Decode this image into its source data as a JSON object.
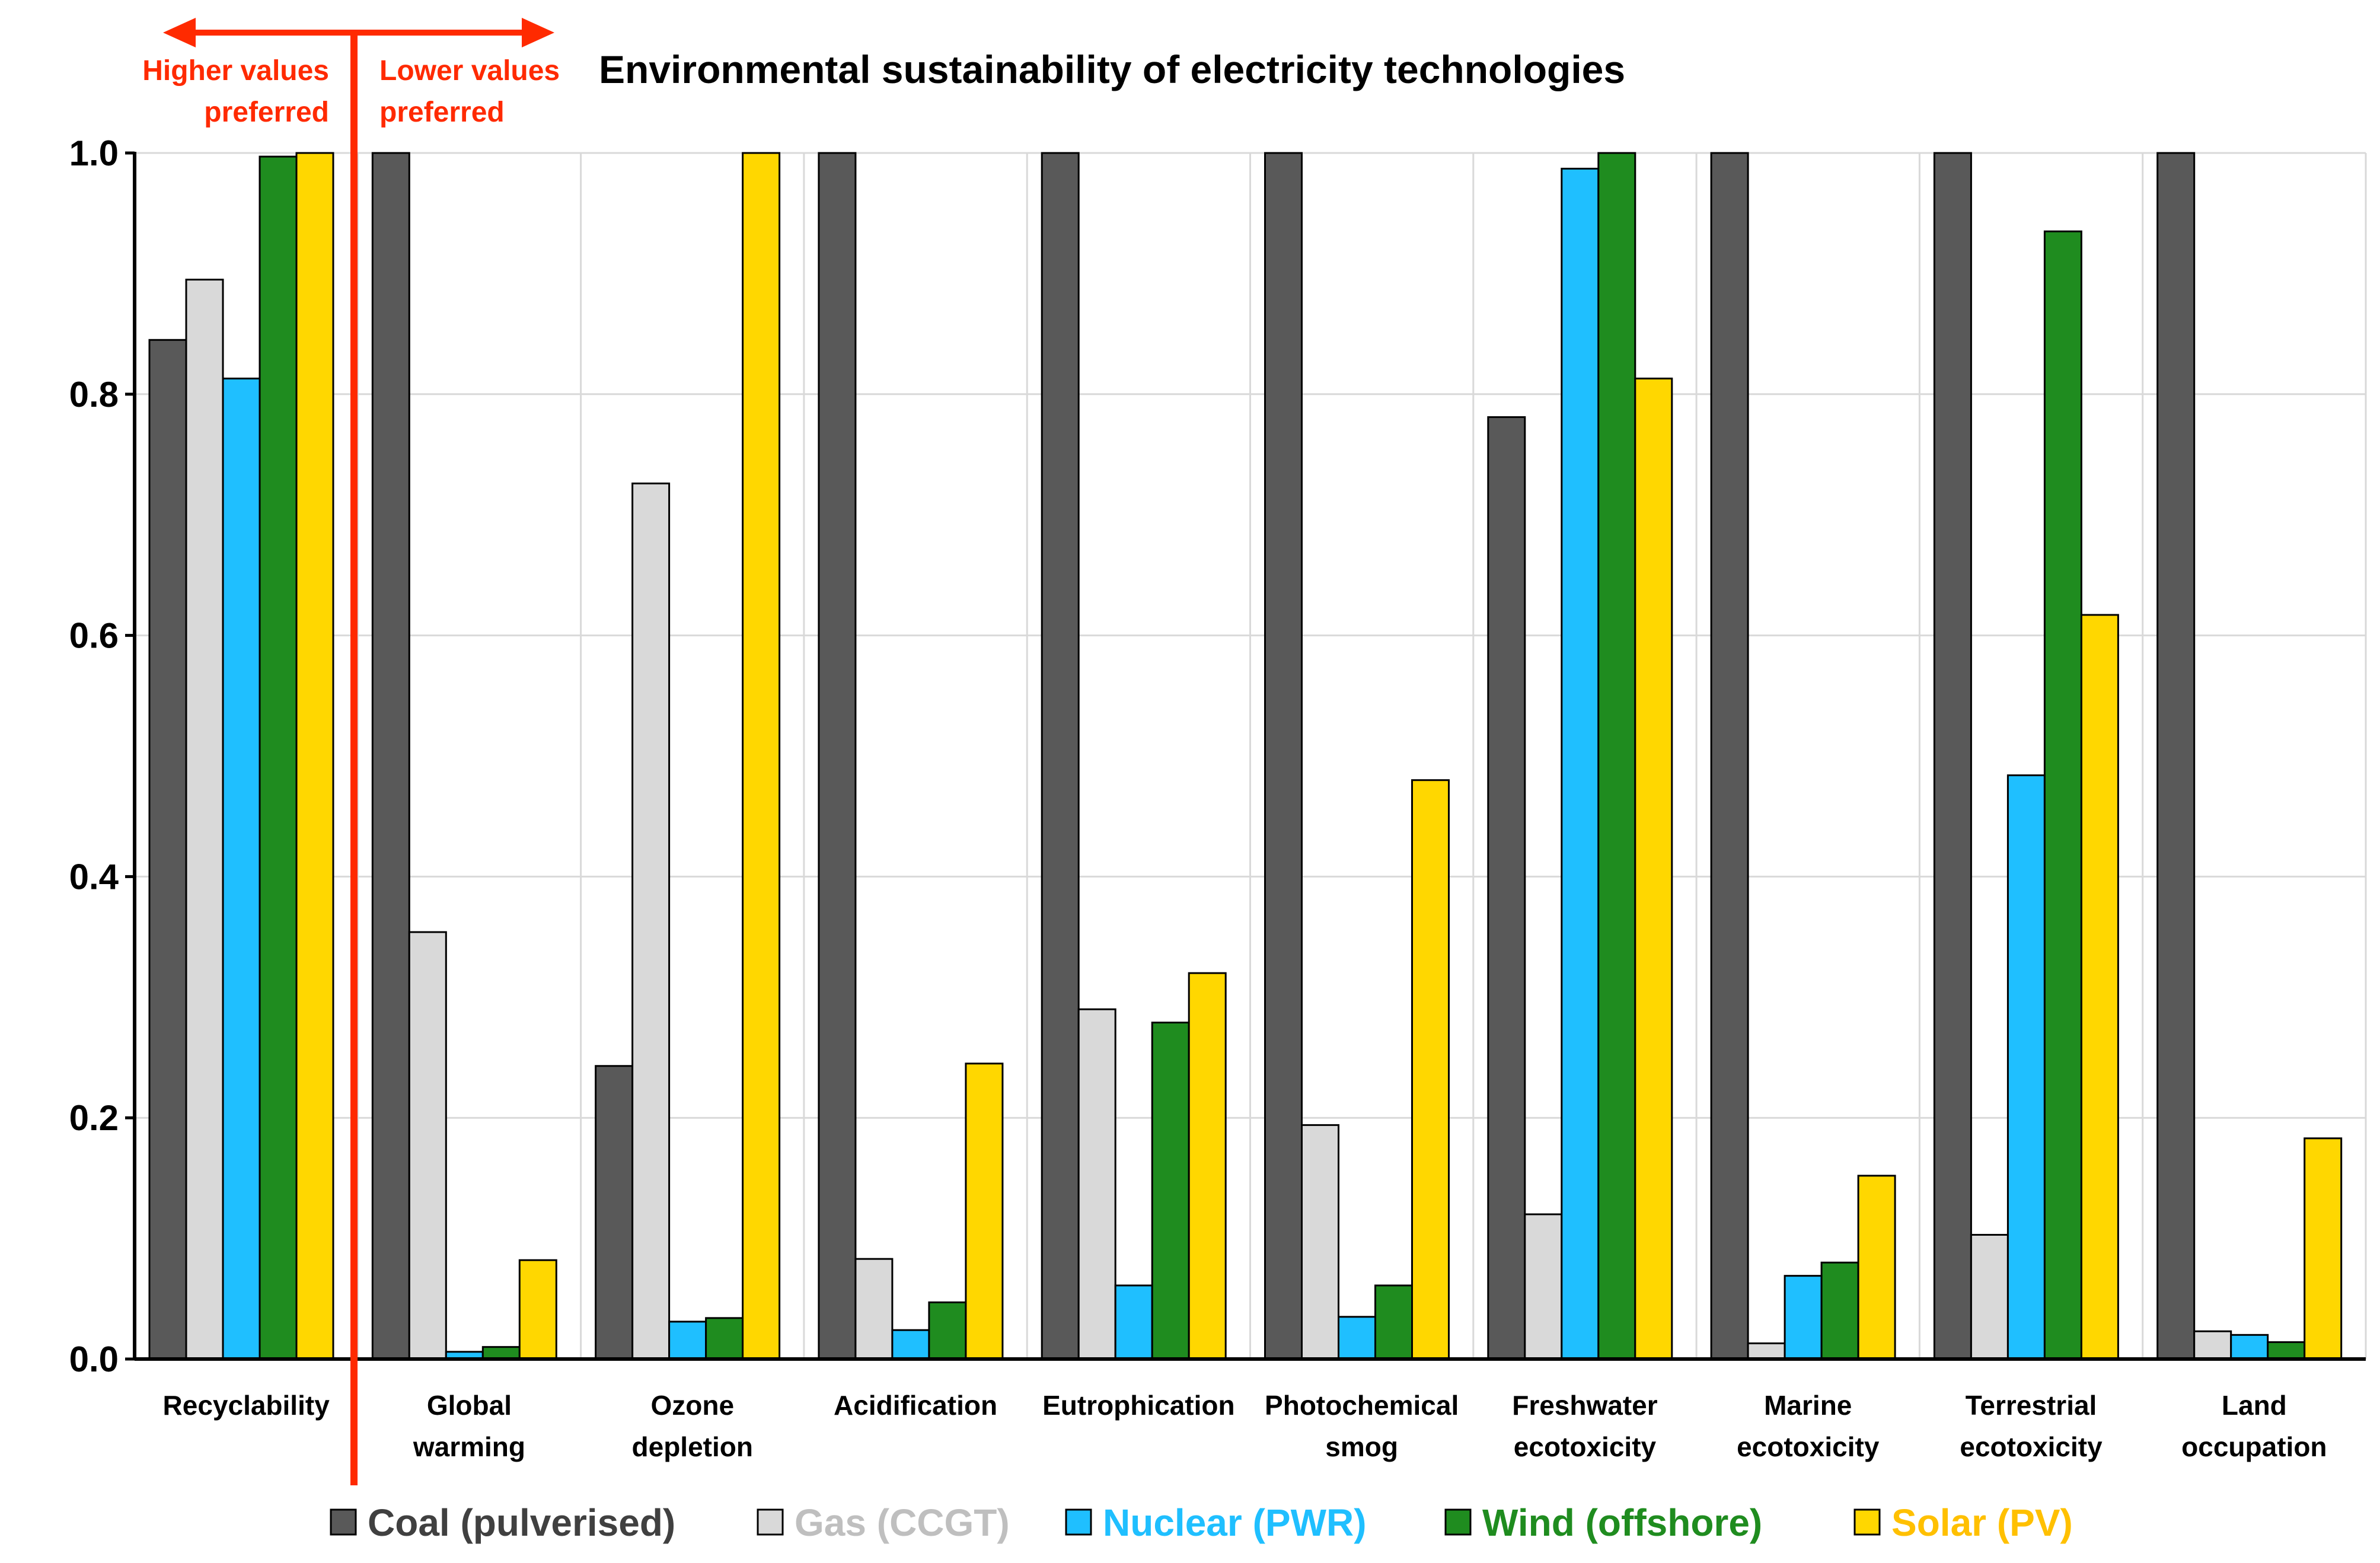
{
  "colors": {
    "coal": "#595959",
    "gas": "#d9d9d9",
    "nuclear": "#1fbfff",
    "wind": "#1f8c1f",
    "solar": "#ffd700",
    "gas_text": "#bfbfbf",
    "nuclear_text": "#1fbfff",
    "wind_text": "#1f8c1f",
    "solar_text": "#ffc000",
    "annotation": "#ff2a00",
    "grid": "#d9d9d9"
  },
  "annotation": {
    "left_line1": "Higher values",
    "left_line2": "preferred",
    "right_line1": "Lower values",
    "right_line2": "preferred"
  },
  "chart_data": {
    "type": "bar",
    "title": "Environmental sustainability of electricity technologies",
    "xlabel": "",
    "ylabel": "",
    "ylim": [
      0,
      1.0
    ],
    "yticks": [
      "0.0",
      "0.2",
      "0.4",
      "0.6",
      "0.8",
      "1.0"
    ],
    "grid": true,
    "legend_position": "bottom",
    "categories": [
      [
        "Recyclability"
      ],
      [
        "Global",
        "warming"
      ],
      [
        "Ozone",
        "depletion"
      ],
      [
        "Acidification"
      ],
      [
        "Eutrophication"
      ],
      [
        "Photochemical",
        "smog"
      ],
      [
        "Freshwater",
        "ecotoxicity"
      ],
      [
        "Marine",
        "ecotoxicity"
      ],
      [
        "Terrestrial",
        "ecotoxicity"
      ],
      [
        "Land",
        "occupation"
      ]
    ],
    "series": [
      {
        "name": "Coal (pulverised)",
        "key": "coal",
        "values": [
          0.845,
          1.0,
          0.243,
          1.0,
          1.0,
          1.0,
          0.781,
          1.0,
          1.0,
          1.0
        ]
      },
      {
        "name": "Gas (CCGT)",
        "key": "gas",
        "values": [
          0.895,
          0.354,
          0.726,
          0.083,
          0.29,
          0.194,
          0.12,
          0.013,
          0.103,
          0.023
        ]
      },
      {
        "name": "Nuclear (PWR)",
        "key": "nuclear",
        "values": [
          0.813,
          0.006,
          0.031,
          0.024,
          0.061,
          0.035,
          0.987,
          0.069,
          0.484,
          0.02
        ]
      },
      {
        "name": "Wind (offshore)",
        "key": "wind",
        "values": [
          0.997,
          0.01,
          0.034,
          0.047,
          0.279,
          0.061,
          1.0,
          0.08,
          0.935,
          0.014
        ]
      },
      {
        "name": "Solar (PV)",
        "key": "solar",
        "values": [
          1.0,
          0.082,
          1.0,
          0.245,
          0.32,
          0.48,
          0.813,
          0.152,
          0.617,
          0.183
        ]
      }
    ]
  }
}
